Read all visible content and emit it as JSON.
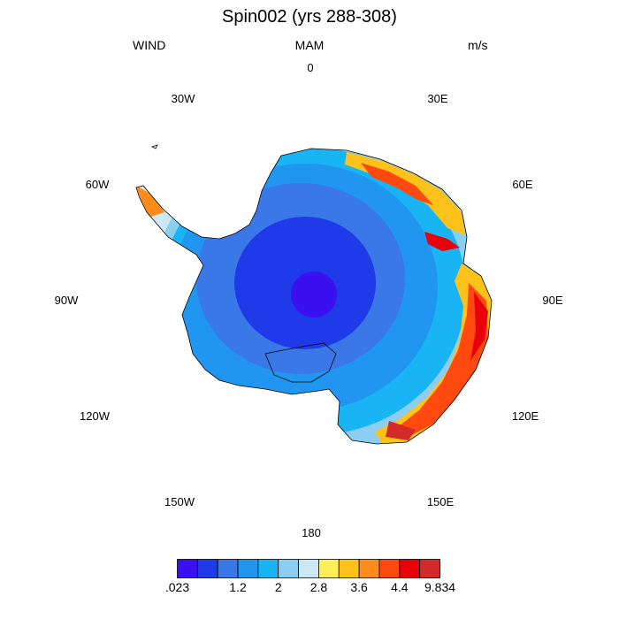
{
  "header": {
    "title": "Spin002 (yrs 288-308)",
    "variable": "WIND",
    "season": "MAM",
    "units": "m/s"
  },
  "longitude_labels": [
    {
      "id": "lon-0",
      "text": "0"
    },
    {
      "id": "lon-30e",
      "text": "30E"
    },
    {
      "id": "lon-60e",
      "text": "60E"
    },
    {
      "id": "lon-90e",
      "text": "90E"
    },
    {
      "id": "lon-120e",
      "text": "120E"
    },
    {
      "id": "lon-150e",
      "text": "150E"
    },
    {
      "id": "lon-180",
      "text": "180"
    },
    {
      "id": "lon-150w",
      "text": "150W"
    },
    {
      "id": "lon-120w",
      "text": "120W"
    },
    {
      "id": "lon-90w",
      "text": "90W"
    },
    {
      "id": "lon-60w",
      "text": "60W"
    },
    {
      "id": "lon-30w",
      "text": "30W"
    }
  ],
  "colorbar": {
    "colors": [
      "#3b10f0",
      "#1f3ae8",
      "#3a78e8",
      "#2196f0",
      "#18b4f4",
      "#8ccdf2",
      "#cde8f5",
      "#ffee58",
      "#ffc21a",
      "#ff8c1a",
      "#ff4a0f",
      "#e8000b",
      "#d42a2a"
    ],
    "labels": [
      {
        "text": ".023",
        "index": 0
      },
      {
        "text": "1.2",
        "index": 3
      },
      {
        "text": "2",
        "index": 5
      },
      {
        "text": "2.8",
        "index": 7
      },
      {
        "text": "3.6",
        "index": 9
      },
      {
        "text": "4.4",
        "index": 11
      },
      {
        "text": "9.834",
        "index": 13
      }
    ]
  }
}
